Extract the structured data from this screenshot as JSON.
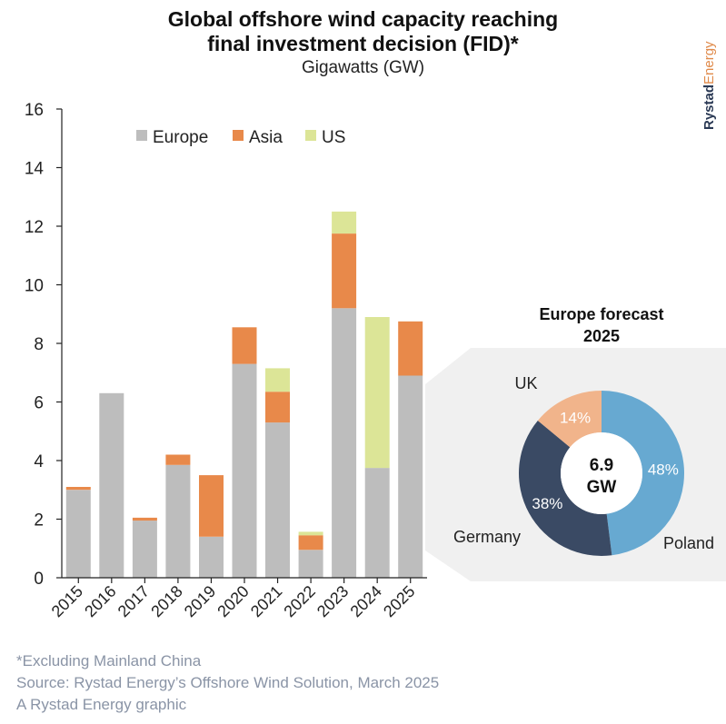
{
  "header": {
    "title_line1": "Global offshore wind capacity reaching",
    "title_line2": "final investment decision (FID)*",
    "subtitle": "Gigawatts (GW)"
  },
  "brand": {
    "part1": "Rystad",
    "part2": "Energy"
  },
  "footer": {
    "note": "*Excluding Mainland China",
    "source": "Source: Rystad Energy’s Offshore Wind Solution, March 2025",
    "credit": "A Rystad Energy graphic"
  },
  "chart_data": [
    {
      "type": "bar",
      "stacked": true,
      "categories": [
        "2015",
        "2016",
        "2017",
        "2018",
        "2019",
        "2020",
        "2021",
        "2022",
        "2023",
        "2024",
        "2025"
      ],
      "series": [
        {
          "name": "Europe",
          "color": "#bdbdbd",
          "values": [
            3.0,
            6.3,
            1.95,
            3.85,
            1.4,
            7.3,
            5.3,
            0.95,
            9.2,
            3.75,
            6.9
          ]
        },
        {
          "name": "Asia",
          "color": "#e8894a",
          "values": [
            0.1,
            0,
            0.1,
            0.35,
            2.1,
            1.25,
            1.05,
            0.5,
            2.55,
            0,
            1.85
          ]
        },
        {
          "name": "US",
          "color": "#dce597",
          "values": [
            0,
            0,
            0,
            0,
            0,
            0,
            0.8,
            0.12,
            0.75,
            5.15,
            0
          ]
        }
      ],
      "ylim": [
        0,
        16
      ],
      "yticks": [
        0,
        2,
        4,
        6,
        8,
        10,
        12,
        14,
        16
      ],
      "grid": false,
      "legend": "top-left"
    },
    {
      "type": "pie",
      "title_line1": "Europe forecast",
      "title_line2": "2025",
      "center_value": "6.9",
      "center_unit": "GW",
      "slices": [
        {
          "name": "Poland",
          "value": 48,
          "label": "48%",
          "color": "#67a9d1"
        },
        {
          "name": "Germany",
          "value": 38,
          "label": "38%",
          "color": "#3a4a64"
        },
        {
          "name": "UK",
          "value": 14,
          "label": "14%",
          "color": "#f1b48b"
        }
      ]
    }
  ]
}
